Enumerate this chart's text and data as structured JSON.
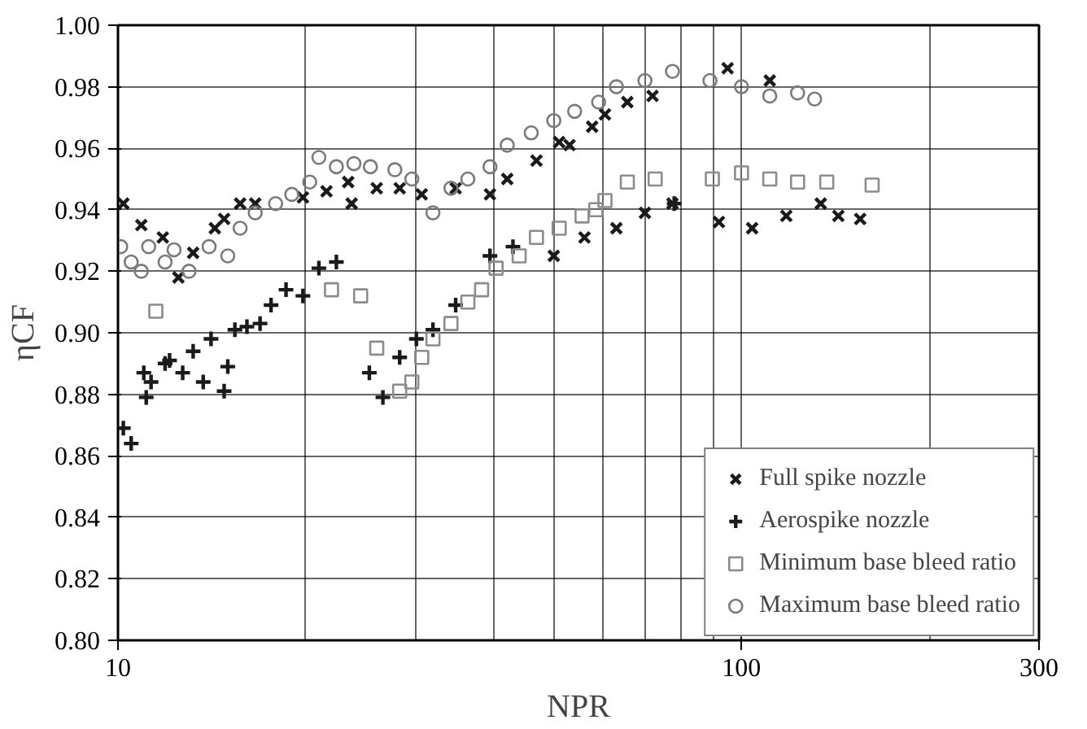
{
  "chart_data": {
    "type": "scatter",
    "xlabel": "NPR",
    "ylabel": "ηCF",
    "log": "x",
    "xlim": [
      10,
      300
    ],
    "xticks": [
      10,
      100,
      300
    ],
    "ylim": [
      0.8,
      1.0
    ],
    "yticks": [
      {
        "value": 0.8,
        "label": "0.80"
      },
      {
        "value": 0.82,
        "label": "0.82"
      },
      {
        "value": 0.84,
        "label": "0.84"
      },
      {
        "value": 0.86,
        "label": "0.86"
      },
      {
        "value": 0.88,
        "label": "0.88"
      },
      {
        "value": 0.9,
        "label": "0.90"
      },
      {
        "value": 0.92,
        "label": "0.92"
      },
      {
        "value": 0.94,
        "label": "0.94"
      },
      {
        "value": 0.96,
        "label": "0.96"
      },
      {
        "value": 0.98,
        "label": "0.98"
      },
      {
        "value": 1.0,
        "label": "1.00"
      }
    ],
    "grid": true,
    "legend": "bottom right",
    "series": [
      {
        "name": "Full spike nozzle",
        "color": "#1a1a1a",
        "marker": "x",
        "x": [
          10.2,
          10.9,
          11.8,
          12.5,
          13.2,
          14.3,
          14.8,
          15.7,
          16.6,
          19.8,
          21.6,
          23.4,
          23.7,
          26.0,
          28.3,
          30.7,
          34.8,
          39.5,
          42.1,
          46.9,
          51,
          53,
          57.6,
          60.4,
          65.6,
          72,
          50,
          56,
          63,
          70,
          77.5,
          95,
          111,
          92,
          104,
          118,
          134,
          143,
          155
        ],
        "values": [
          0.942,
          0.935,
          0.931,
          0.918,
          0.926,
          0.934,
          0.937,
          0.942,
          0.942,
          0.944,
          0.946,
          0.949,
          0.942,
          0.947,
          0.947,
          0.945,
          0.947,
          0.945,
          0.95,
          0.956,
          0.962,
          0.961,
          0.967,
          0.971,
          0.975,
          0.977,
          0.925,
          0.931,
          0.934,
          0.939,
          0.942,
          0.986,
          0.982,
          0.936,
          0.934,
          0.938,
          0.942,
          0.938,
          0.937
        ]
      },
      {
        "name": "Aerospike nozzle",
        "color": "#1a1a1a",
        "marker": "cross",
        "x": [
          10.2,
          10.5,
          11.1,
          11,
          11.3,
          11.9,
          12.1,
          12.7,
          13.2,
          13.7,
          14.1,
          14.8,
          15,
          15.4,
          16.1,
          16.9,
          17.6,
          18.6,
          19.8,
          21,
          22.4,
          25.3,
          26.6,
          28.3,
          30.1,
          32,
          34.8,
          39.5,
          43,
          50,
          78
        ],
        "values": [
          0.869,
          0.864,
          0.879,
          0.887,
          0.884,
          0.89,
          0.891,
          0.887,
          0.894,
          0.884,
          0.898,
          0.881,
          0.889,
          0.901,
          0.902,
          0.903,
          0.909,
          0.914,
          0.912,
          0.921,
          0.923,
          0.887,
          0.879,
          0.892,
          0.898,
          0.901,
          0.909,
          0.925,
          0.928,
          null,
          0.942
        ]
      },
      {
        "name": "Minimum base bleed ratio",
        "color": "#8c8c8c",
        "marker": "square",
        "x": [
          11.5,
          22,
          24.5,
          26,
          28.3,
          29.6,
          30.7,
          32,
          34.2,
          36.4,
          38.3,
          40.4,
          44,
          46.9,
          51,
          55.5,
          58.4,
          60.4,
          65.6,
          72.7,
          89.8,
          100,
          111,
          123,
          137,
          162
        ],
        "values": [
          0.907,
          0.914,
          0.912,
          0.895,
          0.881,
          0.884,
          0.892,
          0.898,
          0.903,
          0.91,
          0.914,
          0.921,
          0.925,
          0.931,
          0.934,
          0.938,
          0.94,
          0.943,
          0.949,
          0.95,
          0.95,
          0.952,
          0.95,
          0.949,
          0.949,
          0.948
        ]
      },
      {
        "name": "Maximum base bleed ratio",
        "color": "#7a7a7a",
        "marker": "circle",
        "x": [
          10.1,
          10.5,
          10.9,
          11.2,
          11.9,
          12.3,
          13,
          14,
          15,
          15.7,
          16.6,
          17.9,
          19,
          20.3,
          21,
          22.4,
          23.9,
          25.4,
          27.8,
          29.6,
          32,
          34.2,
          36.4,
          39.5,
          42.1,
          46,
          50,
          54,
          59,
          63,
          70,
          77.5,
          89,
          100,
          111,
          123,
          131
        ],
        "values": [
          0.928,
          0.923,
          0.92,
          0.928,
          0.923,
          0.927,
          0.92,
          0.928,
          0.925,
          0.934,
          0.939,
          0.942,
          0.945,
          0.949,
          0.957,
          0.954,
          0.955,
          0.954,
          0.953,
          0.95,
          0.939,
          0.947,
          0.95,
          0.954,
          0.961,
          0.965,
          0.969,
          0.972,
          0.975,
          0.98,
          0.982,
          0.985,
          0.982,
          0.98,
          0.977,
          0.978,
          0.976
        ]
      }
    ]
  }
}
